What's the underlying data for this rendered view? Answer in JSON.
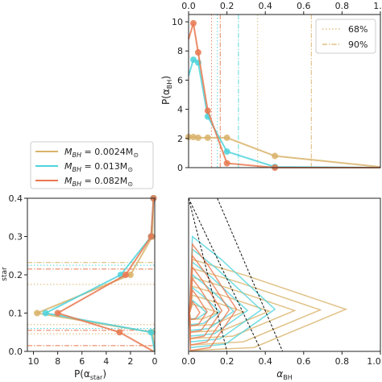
{
  "colors": {
    "gold": "#D9B36A",
    "cyan": "#4FD3DC",
    "orange": "#E8784F",
    "frame": "#222222"
  },
  "legend_mass": {
    "entries": [
      {
        "label": "M_BH = 0.0024M⊙",
        "prefix": "M",
        "sub": "BH",
        "value": " = 0.0024M",
        "sun": "⊙",
        "color": "#D9B36A"
      },
      {
        "label": "M_BH = 0.013M⊙",
        "prefix": "M",
        "sub": "BH",
        "value": " = 0.013M",
        "sun": "⊙",
        "color": "#4FD3DC"
      },
      {
        "label": "M_BH = 0.082M⊙",
        "prefix": "M",
        "sub": "BH",
        "value": " = 0.082M",
        "sun": "⊙",
        "color": "#E8784F"
      }
    ]
  },
  "legend_ci": {
    "entries": [
      {
        "label": "68%",
        "style": "dotted"
      },
      {
        "label": "90%",
        "style": "dashdot"
      }
    ]
  },
  "chart_data": [
    {
      "panel": "top-right",
      "type": "line",
      "xlabel_top": true,
      "ylabel": "P(α_BH)",
      "ylabel_parts": {
        "main": "P(α",
        "sub": "BH",
        "end": ")"
      },
      "xlim": [
        0,
        1.0
      ],
      "ylim": [
        0,
        10.5
      ],
      "xticks": [
        "0.0",
        "0.2",
        "0.4",
        "0.6",
        "0.8",
        "1.0"
      ],
      "yticks": [
        "0",
        "2",
        "4",
        "6",
        "8",
        "10"
      ],
      "series": [
        {
          "name": "M_BH = 0.0024M⊙",
          "color": "#D9B36A",
          "x": [
            0.0,
            0.025,
            0.05,
            0.1,
            0.2,
            0.45,
            1.0
          ],
          "y": [
            2.1,
            2.1,
            2.05,
            2.05,
            2.05,
            0.8,
            0.05
          ],
          "markers": [
            0,
            1,
            2,
            3,
            4,
            5
          ]
        },
        {
          "name": "M_BH = 0.013M⊙",
          "color": "#4FD3DC",
          "x": [
            0.0,
            0.025,
            0.05,
            0.1,
            0.2,
            0.45,
            1.0
          ],
          "y": [
            6.3,
            7.4,
            7.2,
            3.5,
            1.1,
            0.05,
            0.0
          ],
          "markers": [
            1,
            2,
            3,
            4,
            5
          ]
        },
        {
          "name": "M_BH = 0.082M⊙",
          "color": "#E8784F",
          "x": [
            0.0,
            0.025,
            0.05,
            0.1,
            0.2,
            0.45,
            1.0
          ],
          "y": [
            8.8,
            9.9,
            7.9,
            3.9,
            0.3,
            0.0,
            0.0
          ],
          "markers": [
            1,
            2,
            3,
            4,
            5
          ]
        }
      ],
      "vlines_68": [
        {
          "x": 0.12,
          "color": "#E8784F"
        },
        {
          "x": 0.15,
          "color": "#4FD3DC"
        },
        {
          "x": 0.36,
          "color": "#D9B36A"
        }
      ],
      "vlines_90": [
        {
          "x": 0.165,
          "color": "#E8784F"
        },
        {
          "x": 0.26,
          "color": "#4FD3DC"
        },
        {
          "x": 0.64,
          "color": "#D9B36A"
        }
      ]
    },
    {
      "panel": "bottom-left",
      "type": "line",
      "xlabel": "P(α_star)",
      "xlabel_parts": {
        "main": "P(α",
        "sub": "star",
        "end": ")"
      },
      "ylabel": "α_star",
      "ylabel_visible": "star",
      "xlim": [
        10.5,
        0
      ],
      "ylim": [
        0,
        0.4
      ],
      "xticks": [
        "10",
        "8",
        "6",
        "4",
        "2",
        "0"
      ],
      "yticks": [
        "0.0",
        "0.1",
        "0.2",
        "0.3",
        "0.4"
      ],
      "series": [
        {
          "name": "M_BH = 0.0024M⊙",
          "color": "#D9B36A",
          "y": [
            0.4,
            0.3,
            0.2,
            0.1,
            0.05,
            0.0
          ],
          "x": [
            0.1,
            0.2,
            2.0,
            9.7,
            0.2,
            0.0
          ]
        },
        {
          "name": "M_BH = 0.013M⊙",
          "color": "#4FD3DC",
          "y": [
            0.4,
            0.3,
            0.2,
            0.1,
            0.05,
            0.0
          ],
          "x": [
            0.1,
            0.3,
            2.8,
            9.0,
            0.3,
            0.0
          ]
        },
        {
          "name": "M_BH = 0.082M⊙",
          "color": "#E8784F",
          "y": [
            0.4,
            0.3,
            0.2,
            0.1,
            0.05,
            0.0
          ],
          "x": [
            0.1,
            0.3,
            2.4,
            8.0,
            2.9,
            0.1
          ]
        }
      ],
      "hlines_68": [
        {
          "y": 0.046,
          "color": "#D9B36A"
        },
        {
          "y": 0.06,
          "color": "#4FD3DC"
        },
        {
          "y": 0.07,
          "color": "#D9B36A"
        },
        {
          "y": 0.175,
          "color": "#D9B36A"
        },
        {
          "y": 0.225,
          "color": "#4FD3DC"
        }
      ],
      "hlines_90": [
        {
          "y": 0.015,
          "color": "#E8784F"
        },
        {
          "y": 0.055,
          "color": "#E8784F"
        },
        {
          "y": 0.215,
          "color": "#E8784F"
        },
        {
          "y": 0.232,
          "color": "#D9B36A"
        }
      ]
    },
    {
      "panel": "bottom-right",
      "type": "contour",
      "xlabel": "α_BH",
      "xlabel_parts": {
        "main": "α",
        "sub": "BH"
      },
      "xlim": [
        0,
        1.0
      ],
      "ylim": [
        0,
        0.4
      ],
      "xticks": [
        "0.0",
        "0.2",
        "0.4",
        "0.6",
        "0.8",
        "1.0"
      ],
      "series": [
        {
          "name": "M_BH = 0.0024M⊙",
          "color": "#D9B36A",
          "center": [
            0.02,
            0.1
          ],
          "outer_reach": [
            0.82,
            0.14,
            0.1
          ]
        },
        {
          "name": "M_BH = 0.013M⊙",
          "color": "#4FD3DC",
          "center": [
            0.02,
            0.1
          ],
          "outer_reach": [
            0.45,
            0.2,
            0.09
          ]
        },
        {
          "name": "M_BH = 0.082M⊙",
          "color": "#E8784F",
          "center": [
            0.02,
            0.1
          ],
          "outer_reach": [
            0.25,
            0.18,
            0.1
          ]
        }
      ],
      "diagonals": [
        {
          "x0": 0.0,
          "x1": 0.2
        },
        {
          "x0": 0.0,
          "x1": 0.38
        },
        {
          "x0": 0.15,
          "x1": 0.49
        }
      ]
    }
  ]
}
